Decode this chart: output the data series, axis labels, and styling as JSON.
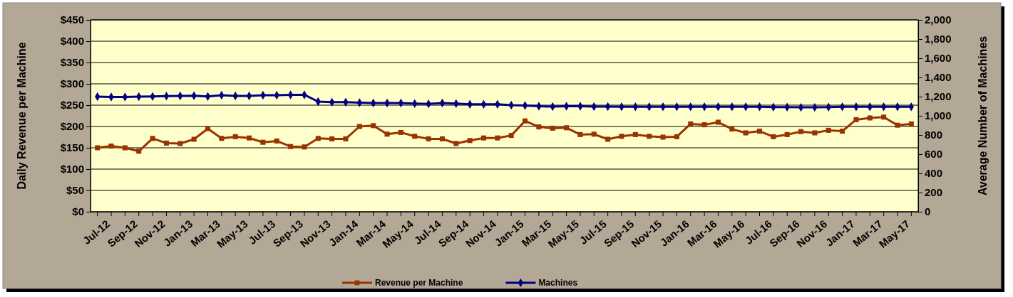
{
  "chart_data": {
    "type": "line",
    "ylabel": "Daily Revenue per Machine",
    "y2label": "Average Number of Machines",
    "categories": [
      "Jul-12",
      null,
      "Sep-12",
      null,
      "Nov-12",
      null,
      "Jan-13",
      null,
      "Mar-13",
      null,
      "May-13",
      null,
      "Jul-13",
      null,
      "Sep-13",
      null,
      "Nov-13",
      null,
      "Jan-14",
      null,
      "Mar-14",
      null,
      "May-14",
      null,
      "Jul-14",
      null,
      "Sep-14",
      null,
      "Nov-14",
      null,
      "Jan-15",
      null,
      "Mar-15",
      null,
      "May-15",
      null,
      "Jul-15",
      null,
      "Sep-15",
      null,
      "Nov-15",
      null,
      "Jan-16",
      null,
      "Mar-16",
      null,
      "May-16",
      null,
      "Jul-16",
      null,
      "Sep-16",
      null,
      "Nov-16",
      null,
      "Jan-17",
      null,
      "Mar-17",
      null,
      "May-17",
      null
    ],
    "series": [
      {
        "name": "Revenue per Machine",
        "color": "#993300",
        "marker": "square",
        "values": [
          150,
          154,
          150,
          142,
          172,
          161,
          160,
          170,
          195,
          172,
          176,
          173,
          163,
          166,
          153,
          152,
          172,
          171,
          171,
          200,
          202,
          182,
          186,
          177,
          171,
          171,
          160,
          167,
          173,
          173,
          179,
          213,
          199,
          196,
          197,
          181,
          182,
          170,
          177,
          181,
          177,
          175,
          176,
          206,
          204,
          210,
          194,
          185,
          189,
          176,
          181,
          188,
          185,
          191,
          189,
          216,
          220,
          222,
          203,
          206
        ]
      },
      {
        "name": "Machines",
        "color": "#000080",
        "marker": "diamond",
        "axis": "y2",
        "values": [
          1200,
          1197,
          1197,
          1200,
          1202,
          1205,
          1208,
          1210,
          1202,
          1214,
          1208,
          1208,
          1214,
          1214,
          1219,
          1219,
          1148,
          1142,
          1142,
          1137,
          1134,
          1134,
          1134,
          1128,
          1125,
          1134,
          1128,
          1120,
          1120,
          1120,
          1111,
          1108,
          1100,
          1097,
          1100,
          1100,
          1097,
          1097,
          1094,
          1094,
          1094,
          1094,
          1094,
          1094,
          1094,
          1094,
          1094,
          1094,
          1094,
          1091,
          1091,
          1088,
          1088,
          1091,
          1094,
          1094,
          1094,
          1094,
          1094,
          1094
        ]
      }
    ],
    "ylim": [
      0,
      450
    ],
    "yticks": [
      {
        "value": 0,
        "label": "$0"
      },
      {
        "value": 50,
        "label": "$50"
      },
      {
        "value": 100,
        "label": "$100"
      },
      {
        "value": 150,
        "label": "$150"
      },
      {
        "value": 200,
        "label": "$200"
      },
      {
        "value": 250,
        "label": "$250"
      },
      {
        "value": 300,
        "label": "$300"
      },
      {
        "value": 350,
        "label": "$350"
      },
      {
        "value": 400,
        "label": "$400"
      },
      {
        "value": 450,
        "label": "$450"
      }
    ],
    "y2lim": [
      0,
      2000
    ],
    "y2ticks": [
      {
        "value": 0,
        "label": "0"
      },
      {
        "value": 200,
        "label": "200"
      },
      {
        "value": 400,
        "label": "400"
      },
      {
        "value": 600,
        "label": "600"
      },
      {
        "value": 800,
        "label": "800"
      },
      {
        "value": 1000,
        "label": "1,000"
      },
      {
        "value": 1200,
        "label": "1,200"
      },
      {
        "value": 1400,
        "label": "1,400"
      },
      {
        "value": 1600,
        "label": "1,600"
      },
      {
        "value": 1800,
        "label": "1,800"
      },
      {
        "value": 2000,
        "label": "2,000"
      }
    ],
    "grid": "y",
    "legend": "bottom"
  }
}
